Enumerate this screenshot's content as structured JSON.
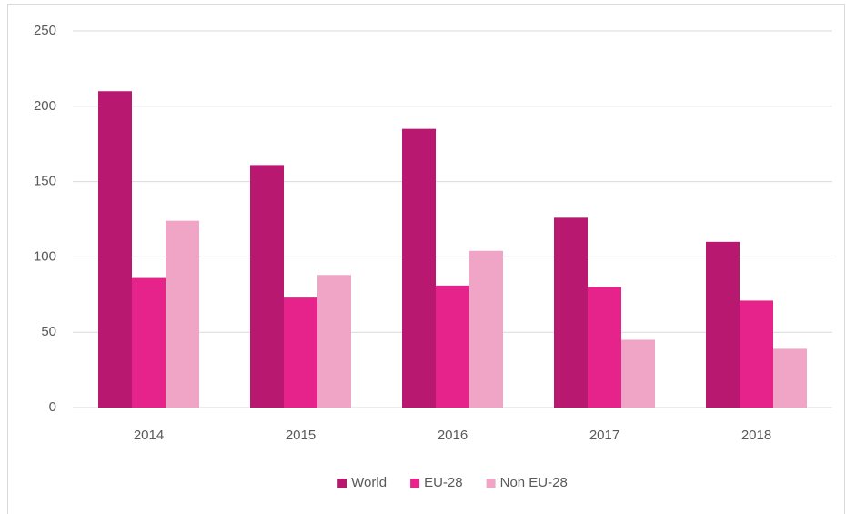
{
  "chart_data": {
    "type": "bar",
    "categories": [
      "2014",
      "2015",
      "2016",
      "2017",
      "2018"
    ],
    "series": [
      {
        "name": "World",
        "color": "#b8186f",
        "values": [
          210,
          161,
          185,
          126,
          110
        ]
      },
      {
        "name": "EU-28",
        "color": "#e6228b",
        "values": [
          86,
          73,
          81,
          80,
          71
        ]
      },
      {
        "name": "Non EU-28",
        "color": "#f0a5c7",
        "values": [
          124,
          88,
          104,
          45,
          39
        ]
      }
    ],
    "ylim": [
      0,
      250
    ],
    "yticks": [
      0,
      50,
      100,
      150,
      200,
      250
    ],
    "grid": true,
    "legend": "bottom"
  }
}
